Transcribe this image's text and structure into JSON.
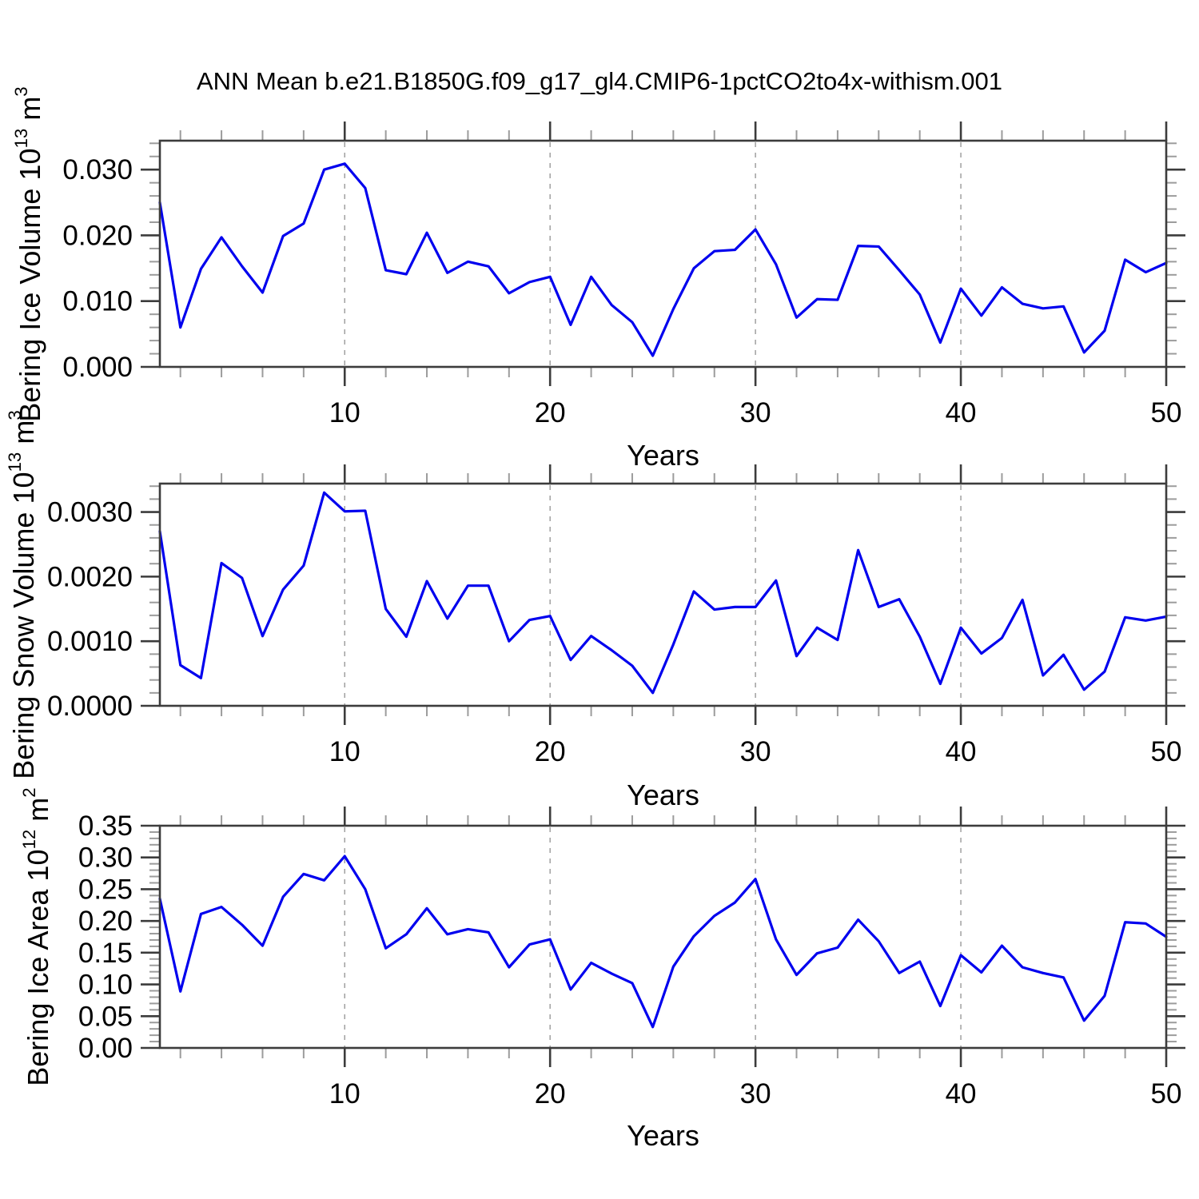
{
  "title": "ANN Mean b.e21.B1850G.f09_g17_gl4.CMIP6-1pctCO2to4x-withism.001",
  "colors": {
    "line": "#0000ee",
    "frame": "#3c3c3c",
    "major_tick": "#3c3c3c",
    "minor_tick": "#9c9c9c",
    "grid": "#a0a0a0",
    "text": "#000000"
  },
  "years": [
    1,
    2,
    3,
    4,
    5,
    6,
    7,
    8,
    9,
    10,
    11,
    12,
    13,
    14,
    15,
    16,
    17,
    18,
    19,
    20,
    21,
    22,
    23,
    24,
    25,
    26,
    27,
    28,
    29,
    30,
    31,
    32,
    33,
    34,
    35,
    36,
    37,
    38,
    39,
    40,
    41,
    42,
    43,
    44,
    45,
    46,
    47,
    48,
    49,
    50
  ],
  "chart_data": [
    {
      "type": "line",
      "name": "bering-ice-volume",
      "ylabel": {
        "base": "Bering Ice Volume 10",
        "exp": "13",
        "unit_base": " m",
        "unit_exp": "3"
      },
      "xlabel": "Years",
      "x_range": [
        1,
        50
      ],
      "values": [
        0.025,
        0.006,
        0.0149,
        0.0197,
        0.0153,
        0.0113,
        0.0199,
        0.0218,
        0.03,
        0.0309,
        0.0272,
        0.0147,
        0.0141,
        0.0204,
        0.0143,
        0.016,
        0.0153,
        0.0112,
        0.0129,
        0.0137,
        0.0064,
        0.0137,
        0.0094,
        0.0068,
        0.0017,
        0.0088,
        0.015,
        0.0176,
        0.0178,
        0.0209,
        0.0156,
        0.0075,
        0.0103,
        0.0102,
        0.0184,
        0.0183,
        0.0147,
        0.011,
        0.0037,
        0.0119,
        0.0078,
        0.0121,
        0.0096,
        0.0089,
        0.0092,
        0.0022,
        0.0055,
        0.0163,
        0.0144,
        0.0158
      ],
      "ylim": [
        0,
        0.0344
      ],
      "ytick_values": [
        0.0,
        0.01,
        0.02,
        0.03
      ],
      "ytick_labels": [
        "0.000",
        "0.010",
        "0.020",
        "0.030"
      ],
      "yminor_step": 0.002,
      "xtick_values": [
        10,
        20,
        30,
        40,
        50
      ],
      "xtick_labels": [
        "10",
        "20",
        "30",
        "40",
        "50"
      ],
      "xminor_step": 2,
      "grid_x": [
        10,
        20,
        30,
        40
      ],
      "grid": "dashed-vertical",
      "legend": "none"
    },
    {
      "type": "line",
      "name": "bering-snow-volume",
      "ylabel": {
        "base": "Bering Snow Volume 10",
        "exp": "13",
        "unit_base": " m",
        "unit_exp": "3"
      },
      "xlabel": "Years",
      "x_range": [
        1,
        50
      ],
      "values": [
        0.0027,
        0.00063,
        0.00043,
        0.00221,
        0.00198,
        0.00108,
        0.0018,
        0.00217,
        0.0033,
        0.00301,
        0.00302,
        0.0015,
        0.00107,
        0.00193,
        0.00135,
        0.00186,
        0.00186,
        0.001,
        0.00133,
        0.00139,
        0.00071,
        0.00108,
        0.00086,
        0.00062,
        0.0002,
        0.00095,
        0.00177,
        0.00149,
        0.00153,
        0.00153,
        0.00194,
        0.00077,
        0.00121,
        0.00102,
        0.00241,
        0.00153,
        0.00165,
        0.00107,
        0.00034,
        0.00121,
        0.00081,
        0.00105,
        0.00164,
        0.00047,
        0.00079,
        0.00025,
        0.00053,
        0.00137,
        0.00132,
        0.00138
      ],
      "ylim": [
        0,
        0.00344
      ],
      "ytick_values": [
        0.0,
        0.001,
        0.002,
        0.003
      ],
      "ytick_labels": [
        "0.0000",
        "0.0010",
        "0.0020",
        "0.0030"
      ],
      "yminor_step": 0.0002,
      "xtick_values": [
        10,
        20,
        30,
        40,
        50
      ],
      "xtick_labels": [
        "10",
        "20",
        "30",
        "40",
        "50"
      ],
      "xminor_step": 2,
      "grid_x": [
        10,
        20,
        30,
        40
      ],
      "grid": "dashed-vertical",
      "legend": "none"
    },
    {
      "type": "line",
      "name": "bering-ice-area",
      "ylabel": {
        "base": "Bering Ice Area 10",
        "exp": "12",
        "unit_base": " m",
        "unit_exp": "2"
      },
      "xlabel": "Years",
      "x_range": [
        1,
        50
      ],
      "values": [
        0.235,
        0.089,
        0.211,
        0.222,
        0.194,
        0.161,
        0.238,
        0.274,
        0.264,
        0.302,
        0.25,
        0.157,
        0.179,
        0.22,
        0.179,
        0.187,
        0.182,
        0.127,
        0.163,
        0.171,
        0.092,
        0.134,
        0.117,
        0.102,
        0.033,
        0.128,
        0.176,
        0.208,
        0.229,
        0.266,
        0.171,
        0.115,
        0.149,
        0.158,
        0.202,
        0.168,
        0.118,
        0.136,
        0.066,
        0.146,
        0.119,
        0.161,
        0.127,
        0.118,
        0.111,
        0.043,
        0.082,
        0.198,
        0.196,
        0.175
      ],
      "ylim": [
        0,
        0.35
      ],
      "ytick_values": [
        0.0,
        0.05,
        0.1,
        0.15,
        0.2,
        0.25,
        0.3,
        0.35
      ],
      "ytick_labels": [
        "0.00",
        "0.05",
        "0.10",
        "0.15",
        "0.20",
        "0.25",
        "0.30",
        "0.35"
      ],
      "yminor_step": 0.01,
      "xtick_values": [
        10,
        20,
        30,
        40,
        50
      ],
      "xtick_labels": [
        "10",
        "20",
        "30",
        "40",
        "50"
      ],
      "xminor_step": 2,
      "grid_x": [
        10,
        20,
        30,
        40
      ],
      "grid": "dashed-vertical",
      "legend": "none"
    }
  ]
}
